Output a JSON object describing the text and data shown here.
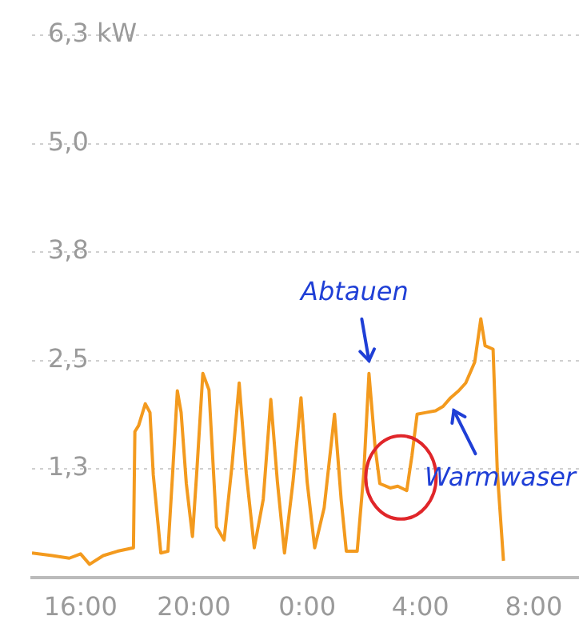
{
  "chart_data": {
    "type": "line",
    "x": [
      "2000-01-01T14:17",
      "2000-01-01T15:00",
      "2000-01-01T15:36",
      "2000-01-01T16:00",
      "2000-01-01T16:19",
      "2000-01-01T16:48",
      "2000-01-01T17:18",
      "2000-01-01T17:52",
      "2000-01-01T17:55",
      "2000-01-01T18:03",
      "2000-01-01T18:17",
      "2000-01-01T18:27",
      "2000-01-01T18:34",
      "2000-01-01T18:50",
      "2000-01-01T19:05",
      "2000-01-01T19:15",
      "2000-01-01T19:25",
      "2000-01-01T19:33",
      "2000-01-01T19:44",
      "2000-01-01T19:57",
      "2000-01-01T20:06",
      "2000-01-01T20:19",
      "2000-01-01T20:32",
      "2000-01-01T20:48",
      "2000-01-01T21:04",
      "2000-01-01T21:21",
      "2000-01-01T21:36",
      "2000-01-01T21:51",
      "2000-01-01T22:08",
      "2000-01-01T22:27",
      "2000-01-01T22:43",
      "2000-01-01T22:57",
      "2000-01-01T23:12",
      "2000-01-01T23:30",
      "2000-01-01T23:47",
      "2000-01-02T00:00",
      "2000-01-02T00:16",
      "2000-01-02T00:36",
      "2000-01-02T00:58",
      "2000-01-02T01:12",
      "2000-01-02T01:23",
      "2000-01-02T01:46",
      "2000-01-02T02:00",
      "2000-01-02T02:11",
      "2000-01-02T02:24",
      "2000-01-02T02:34",
      "2000-01-02T02:56",
      "2000-01-02T03:12",
      "2000-01-02T03:31",
      "2000-01-02T03:42",
      "2000-01-02T03:53",
      "2000-01-02T04:12",
      "2000-01-02T04:32",
      "2000-01-02T04:48",
      "2000-01-02T05:04",
      "2000-01-02T05:21",
      "2000-01-02T05:36",
      "2000-01-02T05:55",
      "2000-01-02T06:08",
      "2000-01-02T06:17",
      "2000-01-02T06:34",
      "2000-01-02T06:43",
      "2000-01-02T06:56"
    ],
    "series": [
      {
        "color": "#f39a1e",
        "values": [
          0.28,
          0.25,
          0.22,
          0.27,
          0.15,
          0.25,
          0.3,
          0.34,
          1.68,
          1.75,
          2.0,
          1.9,
          1.18,
          0.28,
          0.3,
          1.2,
          2.15,
          1.9,
          1.08,
          0.47,
          1.2,
          2.35,
          2.16,
          0.58,
          0.43,
          1.3,
          2.24,
          1.2,
          0.34,
          0.9,
          2.05,
          1.1,
          0.28,
          1.1,
          2.07,
          1.1,
          0.34,
          0.8,
          1.88,
          0.9,
          0.3,
          0.3,
          1.2,
          2.35,
          1.5,
          1.08,
          1.03,
          1.05,
          1.0,
          1.4,
          1.88,
          1.9,
          1.92,
          1.97,
          2.07,
          2.15,
          2.24,
          2.48,
          2.98,
          2.67,
          2.63,
          1.21,
          0.19
        ]
      }
    ],
    "xlim": [
      "2000-01-01T14:17",
      "2000-01-02T09:36"
    ],
    "ylim": [
      0,
      6.25
    ],
    "xticks": [
      {
        "value": "2000-01-01T16:00",
        "label": "16:00"
      },
      {
        "value": "2000-01-01T20:00",
        "label": "20:00"
      },
      {
        "value": "2000-01-02T00:00",
        "label": "0:00"
      },
      {
        "value": "2000-01-02T04:00",
        "label": "4:00"
      },
      {
        "value": "2000-01-02T08:00",
        "label": "8:00"
      }
    ],
    "yticks": [
      {
        "value": 1.25,
        "label": "1,3"
      },
      {
        "value": 2.5,
        "label": "2,5"
      },
      {
        "value": 3.75,
        "label": "3,8"
      },
      {
        "value": 5,
        "label": "5,0"
      },
      {
        "value": 6.25,
        "label": "6,3 kW"
      }
    ],
    "grid": "y",
    "legend": false,
    "marker": "none",
    "line_style": "solid",
    "annotations": [
      {
        "text": "Abtauen",
        "x": "2000-01-02T02:11",
        "y": 2.35
      },
      {
        "text": "Warmwaser",
        "x": "2000-01-02T05:04",
        "y": 2.07
      }
    ]
  }
}
